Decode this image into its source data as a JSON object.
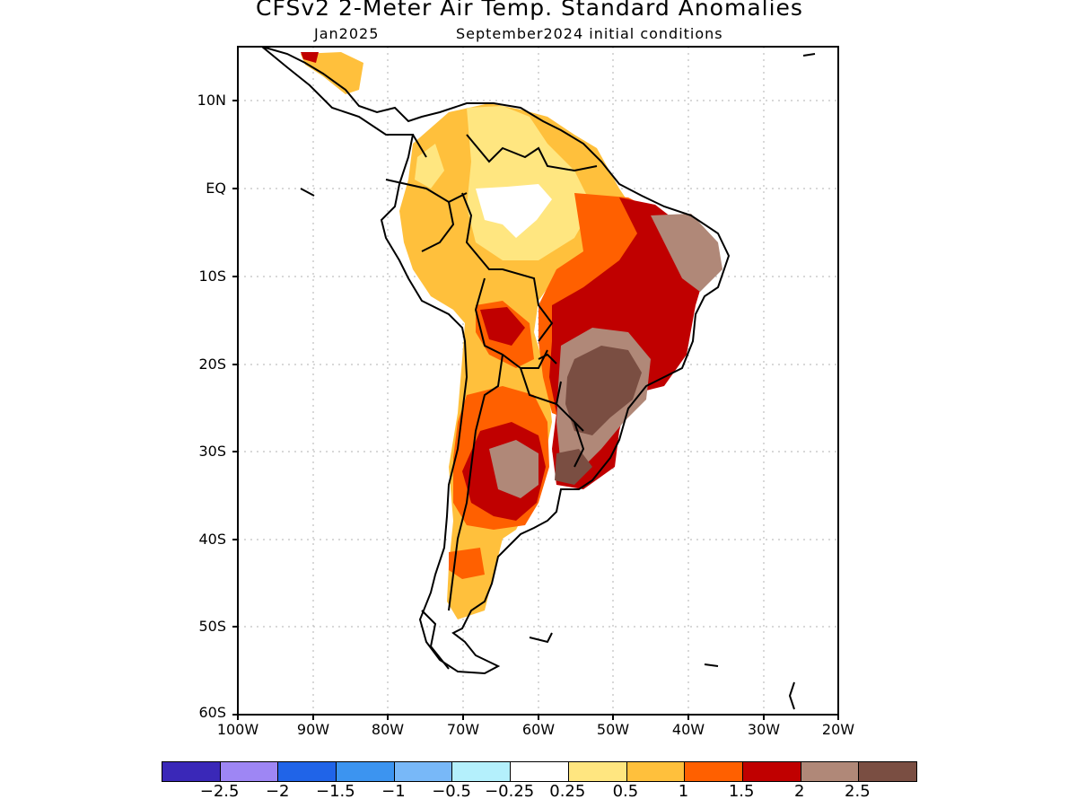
{
  "title": "CFSv2 2-Meter Air Temp. Standard Anomalies",
  "subtitle_left": "Jan2025",
  "subtitle_right": "September2024 initial conditions",
  "map": {
    "lat_labels": [
      "10N",
      "EQ",
      "10S",
      "20S",
      "30S",
      "40S",
      "50S",
      "60S"
    ],
    "lon_labels": [
      "100W",
      "90W",
      "80W",
      "70W",
      "60W",
      "50W",
      "40W",
      "30W",
      "20W"
    ],
    "region": "South America",
    "anomaly_areas": [
      {
        "category": "0.25-0.5",
        "color": "#ffe680"
      },
      {
        "category": "0.5-1",
        "color": "#ffc03c"
      },
      {
        "category": "1-1.5",
        "color": "#ff6000"
      },
      {
        "category": "1.5-2",
        "color": "#c00000"
      },
      {
        "category": "2-2.5",
        "color": "#b08878"
      },
      {
        "category": ">2.5",
        "color": "#7a4e42"
      }
    ]
  },
  "colorbar": {
    "colors": [
      "#3a28b8",
      "#9e86f4",
      "#2064e8",
      "#3c94f0",
      "#78b8f8",
      "#b4f0fc",
      "#ffffff",
      "#ffe680",
      "#ffc03c",
      "#ff6000",
      "#c00000",
      "#b08878",
      "#7a4e42"
    ],
    "labels": [
      "−2.5",
      "−2",
      "−1.5",
      "−1",
      "−0.5",
      "−0.25",
      "0.25",
      "0.5",
      "1",
      "1.5",
      "2",
      "2.5"
    ]
  }
}
